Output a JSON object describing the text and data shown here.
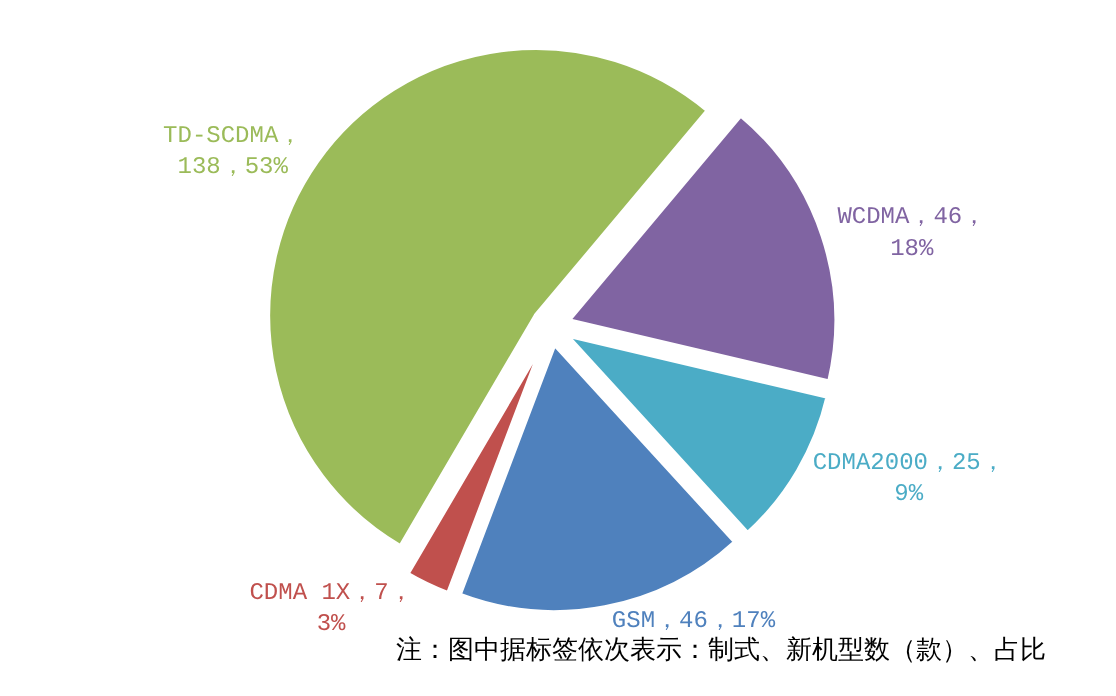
{
  "chart_data": {
    "type": "pie",
    "categories": [
      "WCDMA，46，\n18%",
      "CDMA2000，25，\n9%",
      "GSM，46，17%",
      "CDMA 1X，7，\n3%",
      "TD-SCDMA，\n138，53%"
    ],
    "values": [
      46,
      25,
      46,
      7,
      138
    ],
    "colors": [
      "#8064a2",
      "#4bacc6",
      "#4f81bd",
      "#c0504d",
      "#9bbb59"
    ],
    "legend": false,
    "annotations": [
      "注：图中据标签依次表示：制式、新机型数（款）、占比"
    ]
  }
}
